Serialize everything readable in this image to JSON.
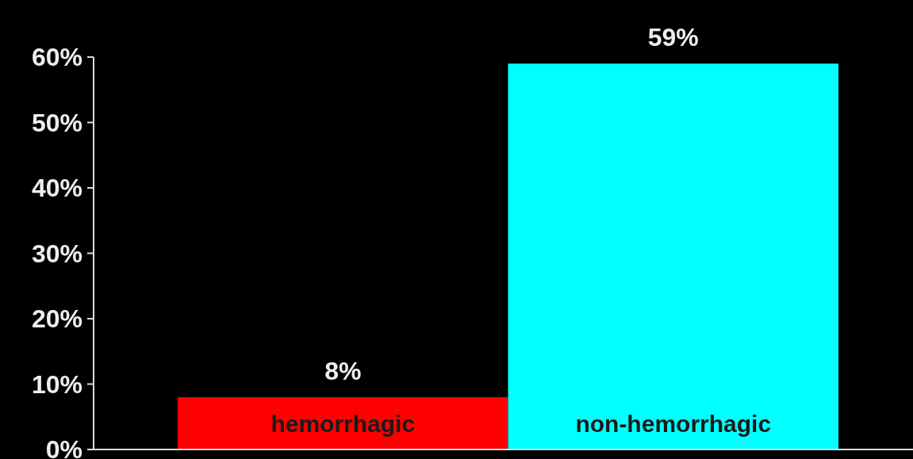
{
  "chart_data": {
    "type": "bar",
    "categories": [
      "hemorrhagic",
      "non-hemorrhagic"
    ],
    "values": [
      8,
      59
    ],
    "colors": [
      "#ff0000",
      "#00ffff"
    ],
    "value_labels": [
      "8%",
      "59%"
    ],
    "ylim": [
      0,
      60
    ],
    "yticks": [
      {
        "value": 0,
        "label": "0%"
      },
      {
        "value": 10,
        "label": "10%"
      },
      {
        "value": 20,
        "label": "20%"
      },
      {
        "value": 30,
        "label": "30%"
      },
      {
        "value": 40,
        "label": "40%"
      },
      {
        "value": 50,
        "label": "50%"
      },
      {
        "value": 60,
        "label": "60%"
      }
    ],
    "grid": false
  }
}
